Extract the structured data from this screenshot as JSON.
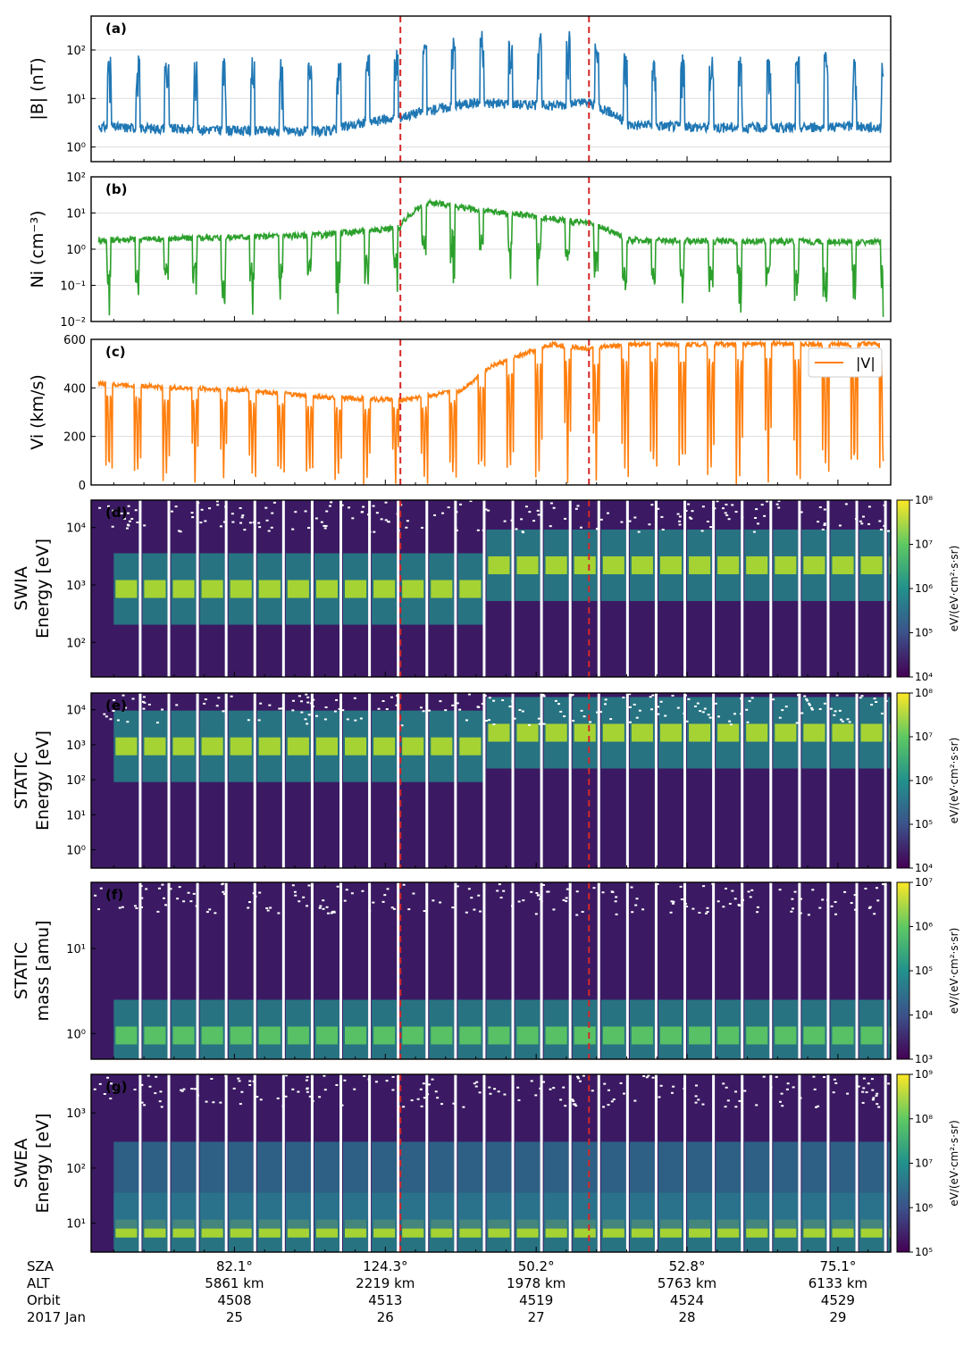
{
  "chart_data": {
    "type": "line",
    "date_label": "2017 Jan",
    "event_lines_x": [
      26.1,
      27.35
    ],
    "x_range": [
      24.05,
      29.35
    ],
    "bottom_axis": {
      "row_labels": [
        "SZA",
        "ALT",
        "Orbit",
        "2017 Jan"
      ],
      "ticks": [
        {
          "x": 25,
          "sza": "82.1°",
          "alt": "5861 km",
          "orbit": "4508",
          "day": "25"
        },
        {
          "x": 26,
          "sza": "124.3°",
          "alt": "2219 km",
          "orbit": "4513",
          "day": "26"
        },
        {
          "x": 27,
          "sza": "50.2°",
          "alt": "1978 km",
          "orbit": "4519",
          "day": "27"
        },
        {
          "x": 28,
          "sza": "52.8°",
          "alt": "5763 km",
          "orbit": "4524",
          "day": "28"
        },
        {
          "x": 29,
          "sza": "75.1°",
          "alt": "6133 km",
          "orbit": "4529",
          "day": "29"
        }
      ]
    },
    "panels": [
      {
        "id": "a",
        "label": "(a)",
        "kind": "line",
        "ylabel": "|B| (nT)",
        "yscale": "log",
        "ylim": [
          0.5,
          500
        ],
        "yticks": [
          "10⁰",
          "10¹",
          "10²"
        ],
        "tickvals": [
          1,
          10,
          100
        ],
        "color": "#1f77b4",
        "series": {
          "name": "|B|",
          "x": [
            24.1,
            24.6,
            25.1,
            25.6,
            26.1,
            26.6,
            27.1,
            27.35,
            27.6,
            28.1,
            28.6,
            29.1,
            29.3
          ],
          "y": [
            2.5,
            2.3,
            2.1,
            2.0,
            4.0,
            8.0,
            7.0,
            8.0,
            2.8,
            2.5,
            2.4,
            2.6,
            2.4
          ]
        }
      },
      {
        "id": "b",
        "label": "(b)",
        "kind": "line",
        "ylabel": "Ni (cm⁻³)",
        "yscale": "log",
        "ylim": [
          0.01,
          100
        ],
        "yticks": [
          "10⁻²",
          "10⁻¹",
          "10⁰",
          "10¹",
          "10²"
        ],
        "tickvals": [
          0.01,
          0.1,
          1,
          10,
          100
        ],
        "color": "#2ca02c",
        "series": {
          "name": "Ni",
          "x": [
            24.1,
            24.6,
            25.1,
            25.6,
            26.1,
            26.3,
            26.6,
            27.1,
            27.35,
            27.6,
            28.1,
            28.6,
            29.1,
            29.3
          ],
          "y": [
            1.8,
            2.0,
            2.2,
            2.5,
            4.0,
            20.0,
            12.0,
            7.0,
            5.0,
            1.8,
            1.7,
            1.7,
            1.6,
            1.6
          ]
        }
      },
      {
        "id": "c",
        "label": "(c)",
        "kind": "line",
        "ylabel": "Vi (km/s)",
        "yscale": "linear",
        "ylim": [
          0,
          600
        ],
        "yticks": [
          "0",
          "200",
          "400",
          "600"
        ],
        "tickvals": [
          0,
          200,
          400,
          600
        ],
        "color": "#ff7f0e",
        "legend": "|V|",
        "series": {
          "name": "|V|",
          "x": [
            24.1,
            24.6,
            25.1,
            25.6,
            26.1,
            26.5,
            26.7,
            27.1,
            27.35,
            27.6,
            28.1,
            28.6,
            29.1,
            29.3
          ],
          "y": [
            420,
            400,
            390,
            360,
            350,
            390,
            490,
            580,
            560,
            580,
            580,
            580,
            580,
            580
          ]
        }
      },
      {
        "id": "d",
        "label": "(d)",
        "kind": "spectrogram",
        "ylabel": [
          "SWIA",
          "Energy [eV]"
        ],
        "yscale": "log",
        "ylim": [
          25,
          30000
        ],
        "yticks": [
          "10²",
          "10³",
          "10⁴"
        ],
        "tickvals": [
          100,
          1000,
          10000
        ],
        "colorbar": {
          "label": "eV/(eV·cm²·s·sr)",
          "ticks": [
            "10⁴",
            "10⁵",
            "10⁶",
            "10⁷",
            "10⁸"
          ]
        }
      },
      {
        "id": "e",
        "label": "(e)",
        "kind": "spectrogram",
        "ylabel": [
          "STATIC",
          "Energy [eV]"
        ],
        "yscale": "log",
        "ylim": [
          0.3,
          30000
        ],
        "yticks": [
          "10⁰",
          "10¹",
          "10²",
          "10³",
          "10⁴"
        ],
        "tickvals": [
          1,
          10,
          100,
          1000,
          10000
        ],
        "colorbar": {
          "label": "eV/(eV·cm²·s·sr)",
          "ticks": [
            "10⁴",
            "10⁵",
            "10⁶",
            "10⁷",
            "10⁸"
          ]
        }
      },
      {
        "id": "f",
        "label": "(f)",
        "kind": "spectrogram",
        "ylabel": [
          "STATIC",
          "mass [amu]"
        ],
        "yscale": "log",
        "ylim": [
          0.5,
          60
        ],
        "yticks": [
          "10⁰",
          "10¹"
        ],
        "tickvals": [
          1,
          10
        ],
        "colorbar": {
          "label": "eV/(eV·cm²·s·sr)",
          "ticks": [
            "10³",
            "10⁴",
            "10⁵",
            "10⁶",
            "10⁷"
          ]
        }
      },
      {
        "id": "g",
        "label": "(g)",
        "kind": "spectrogram",
        "ylabel": [
          "SWEA",
          "Energy [eV]"
        ],
        "yscale": "log",
        "ylim": [
          3,
          5000
        ],
        "yticks": [
          "10¹",
          "10²",
          "10³"
        ],
        "tickvals": [
          10,
          100,
          1000
        ],
        "colorbar": {
          "label": "eV/(eV·cm²·s·sr)",
          "ticks": [
            "10⁵",
            "10⁶",
            "10⁷",
            "10⁸",
            "10⁹"
          ]
        }
      }
    ]
  }
}
